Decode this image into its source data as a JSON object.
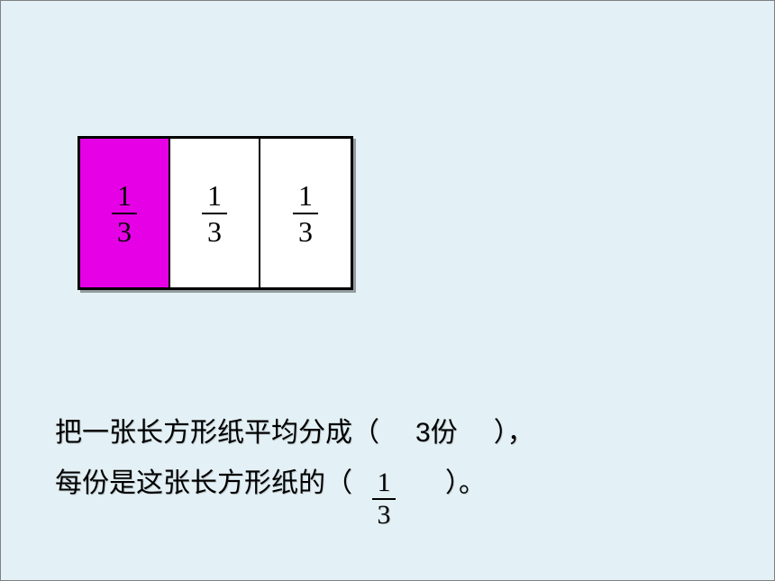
{
  "rectangle": {
    "cells": [
      {
        "filled": true,
        "numerator": "1",
        "denominator": "3"
      },
      {
        "filled": false,
        "numerator": "1",
        "denominator": "3"
      },
      {
        "filled": false,
        "numerator": "1",
        "denominator": "3"
      }
    ],
    "filled_color": "#e600e6",
    "empty_color": "#ffffff",
    "border_color": "#000000"
  },
  "text": {
    "line1_part1": "把一张长方形纸平均分成（",
    "line1_answer": "3份",
    "line1_part2": "），",
    "line2_part1": "每份是这张长方形纸的（",
    "line2_frac_num": "1",
    "line2_frac_den": "3",
    "line2_part2": "）。"
  },
  "colors": {
    "background": "#e3f0f5",
    "text": "#000000"
  }
}
